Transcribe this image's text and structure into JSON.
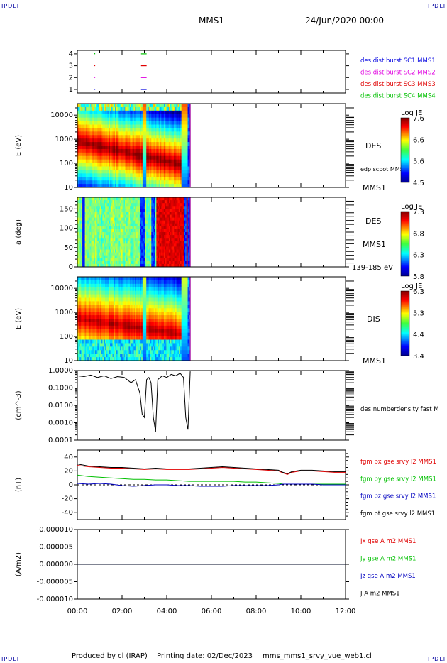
{
  "header": {
    "corner_label": "IPDLI",
    "title": "MMS1",
    "date": "24/Jun/2020 00:00"
  },
  "footer": {
    "produced_by": "Produced by cl (IRAP)",
    "printing_date": "Printing date: 02/Dec/2023",
    "filename": "mms_mms1_srvy_vue_web1.cl"
  },
  "colors": {
    "bx": "#e00000",
    "by": "#00c000",
    "bz": "#0000c0",
    "bt": "#000000",
    "burst1": "#0000e0",
    "burst2": "#e000e0",
    "burst3": "#e00000",
    "burst4": "#00c000"
  },
  "chart_data": [
    {
      "type": "scatter",
      "name": "burst",
      "ylabel": "",
      "yticks": [
        "1",
        "2",
        "3",
        "4"
      ],
      "xlim": [
        0,
        12
      ],
      "legend": [
        {
          "label": "des dist burst SC1 MMS1",
          "color": "#0000e0",
          "level": 1
        },
        {
          "label": "des dist burst SC2 MMS2",
          "color": "#e000e0",
          "level": 2
        },
        {
          "label": "des dist burst SC3 MMS3",
          "color": "#e00000",
          "level": 3
        },
        {
          "label": "des dist burst SC4 MMS4",
          "color": "#00c000",
          "level": 4
        }
      ],
      "points": [
        {
          "x": 0.75,
          "y": 1
        },
        {
          "x": 0.75,
          "y": 2
        },
        {
          "x": 0.75,
          "y": 3
        },
        {
          "x": 0.75,
          "y": 4
        }
      ],
      "segments": [
        {
          "x": [
            2.85,
            3.1
          ],
          "y": 1
        },
        {
          "x": [
            2.85,
            3.1
          ],
          "y": 2
        },
        {
          "x": [
            2.85,
            3.1
          ],
          "y": 3
        },
        {
          "x": [
            2.85,
            3.1
          ],
          "y": 4
        }
      ]
    },
    {
      "type": "heatmap",
      "name": "des-energy",
      "ylabel": "E (eV)",
      "yscale": "log",
      "ylim": [
        10,
        30000
      ],
      "yticks": [
        "10",
        "100",
        "1000",
        "10000"
      ],
      "data_end_hour": 5.05,
      "instrument": "DES",
      "annotation": "edp scpot MMS1",
      "spacecraft": "MMS1",
      "colorbar": {
        "title": "Log JE",
        "ticks": [
          "7.6",
          "6.6",
          "5.6",
          "4.5"
        ],
        "range": [
          4.5,
          7.6
        ]
      }
    },
    {
      "type": "heatmap",
      "name": "des-pitch",
      "ylabel": "a (deg)",
      "ylim": [
        0,
        180
      ],
      "yticks": [
        "0",
        "50",
        "100",
        "150"
      ],
      "data_end_hour": 5.05,
      "instrument": "DES",
      "spacecraft": "MMS1",
      "energy_range": "139-185 eV",
      "colorbar": {
        "title": "Log JE",
        "ticks": [
          "7.3",
          "6.8",
          "6.3",
          "5.8"
        ],
        "range": [
          5.8,
          7.3
        ]
      }
    },
    {
      "type": "heatmap",
      "name": "dis-energy",
      "ylabel": "E (eV)",
      "yscale": "log",
      "ylim": [
        10,
        30000
      ],
      "yticks": [
        "10",
        "100",
        "1000",
        "10000"
      ],
      "data_end_hour": 5.05,
      "instrument": "DIS",
      "spacecraft": "MMS1",
      "colorbar": {
        "title": "Log JE",
        "ticks": [
          "6.3",
          "5.3",
          "4.4",
          "3.4"
        ],
        "range": [
          3.4,
          6.3
        ]
      }
    },
    {
      "type": "line",
      "name": "density",
      "ylabel": "(cm^-3)",
      "yscale": "log",
      "ylim": [
        0.0001,
        1.0
      ],
      "yticks": [
        "0.0001",
        "0.0010",
        "0.0100",
        "0.1000",
        "1.0000"
      ],
      "series": [
        {
          "name": "des numberdensity fast M",
          "color": "#000000"
        }
      ],
      "x": [
        0.0,
        0.3,
        0.6,
        0.9,
        1.2,
        1.5,
        1.8,
        2.1,
        2.4,
        2.6,
        2.8,
        2.9,
        3.0,
        3.1,
        3.2,
        3.3,
        3.4,
        3.5,
        3.6,
        3.8,
        4.0,
        4.2,
        4.4,
        4.6,
        4.75,
        4.85,
        4.95,
        5.05
      ],
      "values": [
        0.5,
        0.45,
        0.55,
        0.4,
        0.5,
        0.35,
        0.45,
        0.4,
        0.2,
        0.3,
        0.05,
        0.003,
        0.002,
        0.3,
        0.4,
        0.2,
        0.002,
        0.0003,
        0.3,
        0.5,
        0.4,
        0.6,
        0.5,
        0.7,
        0.4,
        0.002,
        0.0004,
        0.9
      ]
    },
    {
      "type": "line",
      "name": "magnetic-field",
      "ylabel": "(nT)",
      "ylim": [
        -50,
        50
      ],
      "yticks": [
        "-40",
        "-20",
        "0",
        "20",
        "40"
      ],
      "x": [
        0,
        0.5,
        1,
        1.5,
        2,
        2.5,
        3,
        3.5,
        4,
        4.5,
        5,
        5.5,
        6,
        6.5,
        7,
        7.5,
        8,
        8.5,
        9,
        9.2,
        9.4,
        9.6,
        10,
        10.5,
        11,
        11.5,
        12
      ],
      "series": [
        {
          "name": "fgm bx gse srvy l2 MMS1",
          "color": "#e00000",
          "values": [
            28,
            26,
            25,
            24,
            24,
            23,
            22,
            23,
            22,
            22,
            22,
            23,
            24,
            25,
            24,
            23,
            22,
            21,
            20,
            17,
            15,
            18,
            20,
            20,
            19,
            18,
            18
          ]
        },
        {
          "name": "fgm by gse srvy l2 MMS1",
          "color": "#00c000",
          "values": [
            14,
            12,
            11,
            10,
            9,
            8,
            8,
            7,
            7,
            6,
            5,
            5,
            5,
            5,
            5,
            4,
            4,
            3,
            2,
            1,
            1,
            1,
            1,
            1,
            1,
            1,
            1
          ]
        },
        {
          "name": "fgm bz gse srvy l2 MMS1",
          "color": "#0000c0",
          "values": [
            2,
            1,
            2,
            1,
            -1,
            -2,
            -1,
            0,
            0,
            -1,
            -1,
            -2,
            -2,
            -2,
            -1,
            -1,
            -1,
            -1,
            0,
            1,
            1,
            1,
            1,
            1,
            0,
            0,
            0
          ]
        },
        {
          "name": "fgm bt gse srvy l2 MMS1",
          "color": "#000000",
          "values": [
            30,
            27,
            26,
            25,
            25,
            24,
            23,
            24,
            23,
            23,
            23,
            24,
            25,
            26,
            25,
            24,
            23,
            22,
            21,
            18,
            16,
            19,
            21,
            21,
            20,
            19,
            19
          ]
        }
      ]
    },
    {
      "type": "line",
      "name": "current-density",
      "ylabel": "(A/m2)",
      "ylim": [
        -1e-05,
        1e-05
      ],
      "yticks": [
        "-0.000010",
        "-0.000005",
        "0.000000",
        "0.000005",
        "0.000010"
      ],
      "xlim": [
        0,
        12
      ],
      "xticks": [
        "00:00",
        "02:00",
        "04:00",
        "06:00",
        "08:00",
        "10:00",
        "12:00"
      ],
      "x": [
        0,
        1,
        2,
        3,
        4,
        5,
        6,
        7,
        8,
        9,
        10,
        11,
        12
      ],
      "series": [
        {
          "name": "Jx gse A m2 MMS1",
          "color": "#e00000",
          "values": [
            0,
            0,
            0,
            0,
            0,
            0,
            0,
            0,
            0,
            0,
            0,
            0,
            0
          ]
        },
        {
          "name": "Jy gse A m2 MMS1",
          "color": "#00c000",
          "values": [
            0,
            0,
            0,
            0,
            0,
            0,
            0,
            0,
            0,
            0,
            0,
            0,
            0
          ]
        },
        {
          "name": "Jz gse A m2 MMS1",
          "color": "#0000c0",
          "values": [
            0,
            0,
            0,
            0,
            0,
            0,
            0,
            0,
            0,
            0,
            0,
            0,
            0
          ]
        },
        {
          "name": "J A m2 MMS1",
          "color": "#000000",
          "values": [
            0,
            0,
            0,
            0,
            0,
            0,
            0,
            0,
            0,
            0,
            0,
            0,
            0
          ]
        }
      ]
    }
  ]
}
